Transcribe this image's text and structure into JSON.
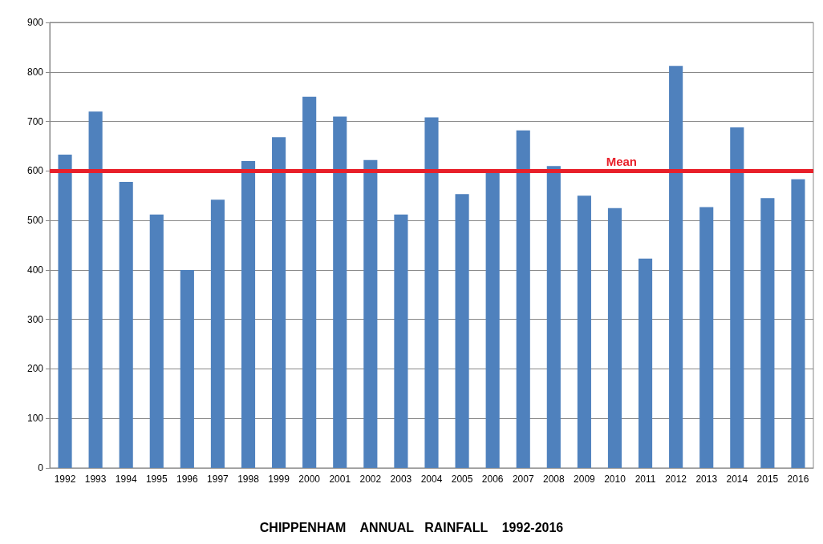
{
  "chart_data": {
    "type": "bar",
    "title": "CHIPPENHAM    ANNUAL   RAINFALL    1992-2016",
    "categories": [
      "1992",
      "1993",
      "1994",
      "1995",
      "1996",
      "1997",
      "1998",
      "1999",
      "2000",
      "2001",
      "2002",
      "2003",
      "2004",
      "2005",
      "2006",
      "2007",
      "2008",
      "2009",
      "2010",
      "2011",
      "2012",
      "2013",
      "2014",
      "2015",
      "2016"
    ],
    "values": [
      633,
      720,
      578,
      512,
      400,
      542,
      620,
      668,
      750,
      710,
      622,
      512,
      708,
      553,
      600,
      682,
      610,
      550,
      525,
      423,
      812,
      527,
      688,
      545,
      583
    ],
    "color": "#4f81bd",
    "ylim": [
      0,
      900
    ],
    "yticks": [
      0,
      100,
      200,
      300,
      400,
      500,
      600,
      700,
      800,
      900
    ],
    "grid": "y",
    "ref_lines": [
      {
        "axis": "y",
        "value": 600,
        "label": "Mean",
        "color": "#e8202a"
      }
    ]
  }
}
